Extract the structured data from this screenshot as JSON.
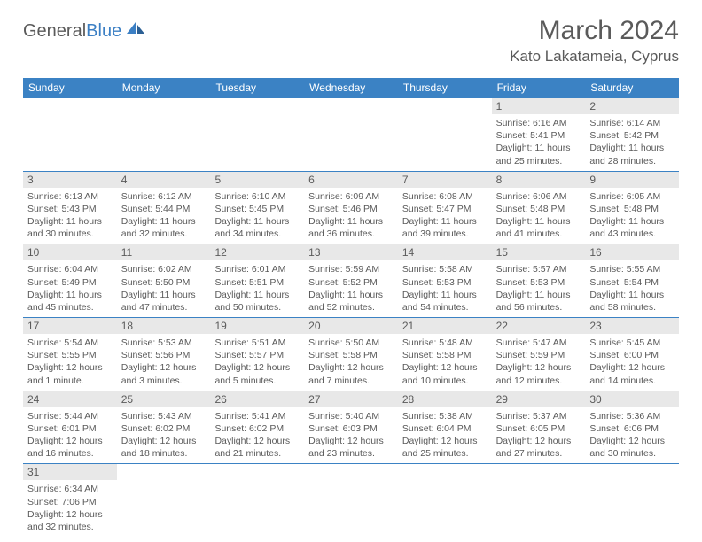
{
  "logo": {
    "general": "General",
    "blue": "Blue"
  },
  "title": "March 2024",
  "location": "Kato Lakatameia, Cyprus",
  "colors": {
    "header_bg": "#3b82c4",
    "daynum_bg": "#e8e8e8",
    "text": "#5a5a5a",
    "border": "#3b82c4",
    "logo_blue": "#3b7fc4"
  },
  "day_headers": [
    "Sunday",
    "Monday",
    "Tuesday",
    "Wednesday",
    "Thursday",
    "Friday",
    "Saturday"
  ],
  "weeks": [
    {
      "days": [
        null,
        null,
        null,
        null,
        null,
        {
          "n": "1",
          "sunrise": "Sunrise: 6:16 AM",
          "sunset": "Sunset: 5:41 PM",
          "daylight1": "Daylight: 11 hours",
          "daylight2": "and 25 minutes."
        },
        {
          "n": "2",
          "sunrise": "Sunrise: 6:14 AM",
          "sunset": "Sunset: 5:42 PM",
          "daylight1": "Daylight: 11 hours",
          "daylight2": "and 28 minutes."
        }
      ]
    },
    {
      "days": [
        {
          "n": "3",
          "sunrise": "Sunrise: 6:13 AM",
          "sunset": "Sunset: 5:43 PM",
          "daylight1": "Daylight: 11 hours",
          "daylight2": "and 30 minutes."
        },
        {
          "n": "4",
          "sunrise": "Sunrise: 6:12 AM",
          "sunset": "Sunset: 5:44 PM",
          "daylight1": "Daylight: 11 hours",
          "daylight2": "and 32 minutes."
        },
        {
          "n": "5",
          "sunrise": "Sunrise: 6:10 AM",
          "sunset": "Sunset: 5:45 PM",
          "daylight1": "Daylight: 11 hours",
          "daylight2": "and 34 minutes."
        },
        {
          "n": "6",
          "sunrise": "Sunrise: 6:09 AM",
          "sunset": "Sunset: 5:46 PM",
          "daylight1": "Daylight: 11 hours",
          "daylight2": "and 36 minutes."
        },
        {
          "n": "7",
          "sunrise": "Sunrise: 6:08 AM",
          "sunset": "Sunset: 5:47 PM",
          "daylight1": "Daylight: 11 hours",
          "daylight2": "and 39 minutes."
        },
        {
          "n": "8",
          "sunrise": "Sunrise: 6:06 AM",
          "sunset": "Sunset: 5:48 PM",
          "daylight1": "Daylight: 11 hours",
          "daylight2": "and 41 minutes."
        },
        {
          "n": "9",
          "sunrise": "Sunrise: 6:05 AM",
          "sunset": "Sunset: 5:48 PM",
          "daylight1": "Daylight: 11 hours",
          "daylight2": "and 43 minutes."
        }
      ]
    },
    {
      "days": [
        {
          "n": "10",
          "sunrise": "Sunrise: 6:04 AM",
          "sunset": "Sunset: 5:49 PM",
          "daylight1": "Daylight: 11 hours",
          "daylight2": "and 45 minutes."
        },
        {
          "n": "11",
          "sunrise": "Sunrise: 6:02 AM",
          "sunset": "Sunset: 5:50 PM",
          "daylight1": "Daylight: 11 hours",
          "daylight2": "and 47 minutes."
        },
        {
          "n": "12",
          "sunrise": "Sunrise: 6:01 AM",
          "sunset": "Sunset: 5:51 PM",
          "daylight1": "Daylight: 11 hours",
          "daylight2": "and 50 minutes."
        },
        {
          "n": "13",
          "sunrise": "Sunrise: 5:59 AM",
          "sunset": "Sunset: 5:52 PM",
          "daylight1": "Daylight: 11 hours",
          "daylight2": "and 52 minutes."
        },
        {
          "n": "14",
          "sunrise": "Sunrise: 5:58 AM",
          "sunset": "Sunset: 5:53 PM",
          "daylight1": "Daylight: 11 hours",
          "daylight2": "and 54 minutes."
        },
        {
          "n": "15",
          "sunrise": "Sunrise: 5:57 AM",
          "sunset": "Sunset: 5:53 PM",
          "daylight1": "Daylight: 11 hours",
          "daylight2": "and 56 minutes."
        },
        {
          "n": "16",
          "sunrise": "Sunrise: 5:55 AM",
          "sunset": "Sunset: 5:54 PM",
          "daylight1": "Daylight: 11 hours",
          "daylight2": "and 58 minutes."
        }
      ]
    },
    {
      "days": [
        {
          "n": "17",
          "sunrise": "Sunrise: 5:54 AM",
          "sunset": "Sunset: 5:55 PM",
          "daylight1": "Daylight: 12 hours",
          "daylight2": "and 1 minute."
        },
        {
          "n": "18",
          "sunrise": "Sunrise: 5:53 AM",
          "sunset": "Sunset: 5:56 PM",
          "daylight1": "Daylight: 12 hours",
          "daylight2": "and 3 minutes."
        },
        {
          "n": "19",
          "sunrise": "Sunrise: 5:51 AM",
          "sunset": "Sunset: 5:57 PM",
          "daylight1": "Daylight: 12 hours",
          "daylight2": "and 5 minutes."
        },
        {
          "n": "20",
          "sunrise": "Sunrise: 5:50 AM",
          "sunset": "Sunset: 5:58 PM",
          "daylight1": "Daylight: 12 hours",
          "daylight2": "and 7 minutes."
        },
        {
          "n": "21",
          "sunrise": "Sunrise: 5:48 AM",
          "sunset": "Sunset: 5:58 PM",
          "daylight1": "Daylight: 12 hours",
          "daylight2": "and 10 minutes."
        },
        {
          "n": "22",
          "sunrise": "Sunrise: 5:47 AM",
          "sunset": "Sunset: 5:59 PM",
          "daylight1": "Daylight: 12 hours",
          "daylight2": "and 12 minutes."
        },
        {
          "n": "23",
          "sunrise": "Sunrise: 5:45 AM",
          "sunset": "Sunset: 6:00 PM",
          "daylight1": "Daylight: 12 hours",
          "daylight2": "and 14 minutes."
        }
      ]
    },
    {
      "days": [
        {
          "n": "24",
          "sunrise": "Sunrise: 5:44 AM",
          "sunset": "Sunset: 6:01 PM",
          "daylight1": "Daylight: 12 hours",
          "daylight2": "and 16 minutes."
        },
        {
          "n": "25",
          "sunrise": "Sunrise: 5:43 AM",
          "sunset": "Sunset: 6:02 PM",
          "daylight1": "Daylight: 12 hours",
          "daylight2": "and 18 minutes."
        },
        {
          "n": "26",
          "sunrise": "Sunrise: 5:41 AM",
          "sunset": "Sunset: 6:02 PM",
          "daylight1": "Daylight: 12 hours",
          "daylight2": "and 21 minutes."
        },
        {
          "n": "27",
          "sunrise": "Sunrise: 5:40 AM",
          "sunset": "Sunset: 6:03 PM",
          "daylight1": "Daylight: 12 hours",
          "daylight2": "and 23 minutes."
        },
        {
          "n": "28",
          "sunrise": "Sunrise: 5:38 AM",
          "sunset": "Sunset: 6:04 PM",
          "daylight1": "Daylight: 12 hours",
          "daylight2": "and 25 minutes."
        },
        {
          "n": "29",
          "sunrise": "Sunrise: 5:37 AM",
          "sunset": "Sunset: 6:05 PM",
          "daylight1": "Daylight: 12 hours",
          "daylight2": "and 27 minutes."
        },
        {
          "n": "30",
          "sunrise": "Sunrise: 5:36 AM",
          "sunset": "Sunset: 6:06 PM",
          "daylight1": "Daylight: 12 hours",
          "daylight2": "and 30 minutes."
        }
      ]
    },
    {
      "days": [
        {
          "n": "31",
          "sunrise": "Sunrise: 6:34 AM",
          "sunset": "Sunset: 7:06 PM",
          "daylight1": "Daylight: 12 hours",
          "daylight2": "and 32 minutes."
        },
        null,
        null,
        null,
        null,
        null,
        null
      ]
    }
  ]
}
